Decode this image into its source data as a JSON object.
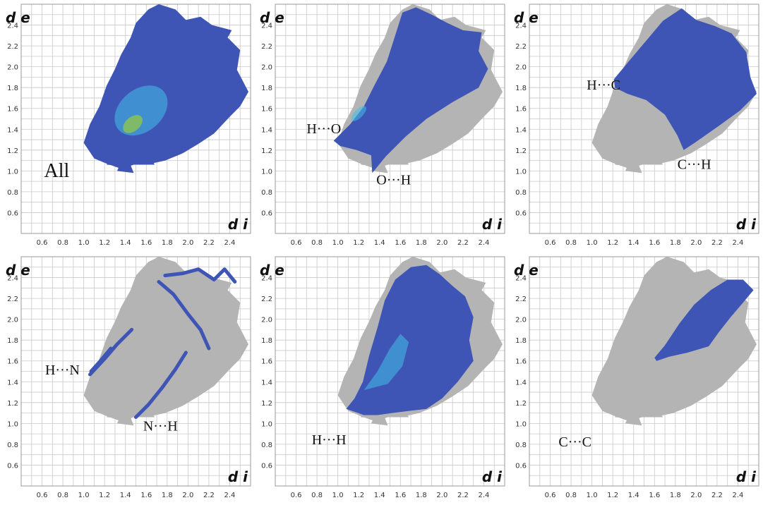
{
  "colors": {
    "grid": "#c8c8c8",
    "grey": "#b4b4b4",
    "blue": "#3f55b5",
    "cyan": "#3fc0e8",
    "green": "#9acc3c",
    "frame": "#9a9a9a"
  },
  "chart_data": [
    {
      "type": "scatter",
      "name": "All",
      "xlabel": "d i",
      "ylabel": "d e",
      "xlim": [
        0.4,
        2.6
      ],
      "ylim": [
        0.4,
        2.6
      ],
      "xticks": [
        "0.6",
        "0.8",
        "1.0",
        "1.2",
        "1.4",
        "1.6",
        "1.8",
        "2.0",
        "2.2",
        "2.4"
      ],
      "yticks": [
        "0.6",
        "0.8",
        "1.0",
        "1.2",
        "1.4",
        "1.6",
        "1.8",
        "2.0",
        "2.2",
        "2.4"
      ],
      "labels": [
        {
          "text": "All",
          "x": 0.62,
          "y": 0.94
        }
      ]
    },
    {
      "type": "scatter",
      "name": "H···O / O···H",
      "xlabel": "d i",
      "ylabel": "d e",
      "xlim": [
        0.4,
        2.6
      ],
      "ylim": [
        0.4,
        2.6
      ],
      "xticks": [
        "0.6",
        "0.8",
        "1.0",
        "1.2",
        "1.4",
        "1.6",
        "1.8",
        "2.0",
        "2.2",
        "2.4"
      ],
      "yticks": [
        "0.6",
        "0.8",
        "1.0",
        "1.2",
        "1.4",
        "1.6",
        "1.8",
        "2.0",
        "2.2",
        "2.4"
      ],
      "labels": [
        {
          "text": "H···O",
          "x": 0.7,
          "y": 1.36
        },
        {
          "text": "O···H",
          "x": 1.37,
          "y": 0.87
        }
      ]
    },
    {
      "type": "scatter",
      "name": "H···C / C···H",
      "xlabel": "d i",
      "ylabel": "d e",
      "xlim": [
        0.4,
        2.6
      ],
      "ylim": [
        0.4,
        2.6
      ],
      "xticks": [
        "0.6",
        "0.8",
        "1.0",
        "1.2",
        "1.4",
        "1.6",
        "1.8",
        "2.0",
        "2.2",
        "2.4"
      ],
      "yticks": [
        "0.6",
        "0.8",
        "1.0",
        "1.2",
        "1.4",
        "1.6",
        "1.8",
        "2.0",
        "2.2",
        "2.4"
      ],
      "labels": [
        {
          "text": "H···C",
          "x": 0.95,
          "y": 1.78
        },
        {
          "text": "C···H",
          "x": 1.82,
          "y": 1.02
        }
      ]
    },
    {
      "type": "scatter",
      "name": "H···N / N···H",
      "xlabel": "d i",
      "ylabel": "d e",
      "xlim": [
        0.4,
        2.6
      ],
      "ylim": [
        0.4,
        2.6
      ],
      "xticks": [
        "0.6",
        "0.8",
        "1.0",
        "1.2",
        "1.4",
        "1.6",
        "1.8",
        "2.0",
        "2.2",
        "2.4"
      ],
      "yticks": [
        "0.6",
        "0.8",
        "1.0",
        "1.2",
        "1.4",
        "1.6",
        "1.8",
        "2.0",
        "2.2",
        "2.4"
      ],
      "labels": [
        {
          "text": "H···N",
          "x": 0.63,
          "y": 1.47
        },
        {
          "text": "N···H",
          "x": 1.57,
          "y": 0.93
        }
      ]
    },
    {
      "type": "scatter",
      "name": "H···H",
      "xlabel": "d i",
      "ylabel": "d e",
      "xlim": [
        0.4,
        2.6
      ],
      "ylim": [
        0.4,
        2.6
      ],
      "xticks": [
        "0.6",
        "0.8",
        "1.0",
        "1.2",
        "1.4",
        "1.6",
        "1.8",
        "2.0",
        "2.2",
        "2.4"
      ],
      "yticks": [
        "0.6",
        "0.8",
        "1.0",
        "1.2",
        "1.4",
        "1.6",
        "1.8",
        "2.0",
        "2.2",
        "2.4"
      ],
      "labels": [
        {
          "text": "H···H",
          "x": 0.75,
          "y": 0.8
        }
      ]
    },
    {
      "type": "scatter",
      "name": "C···C",
      "xlabel": "d i",
      "ylabel": "d e",
      "xlim": [
        0.4,
        2.6
      ],
      "ylim": [
        0.4,
        2.6
      ],
      "xticks": [
        "0.6",
        "0.8",
        "1.0",
        "1.2",
        "1.4",
        "1.6",
        "1.8",
        "2.0",
        "2.2",
        "2.4"
      ],
      "yticks": [
        "0.6",
        "0.8",
        "1.0",
        "1.2",
        "1.4",
        "1.6",
        "1.8",
        "2.0",
        "2.2",
        "2.4"
      ],
      "labels": [
        {
          "text": "C···C",
          "x": 0.68,
          "y": 0.78
        }
      ]
    }
  ]
}
